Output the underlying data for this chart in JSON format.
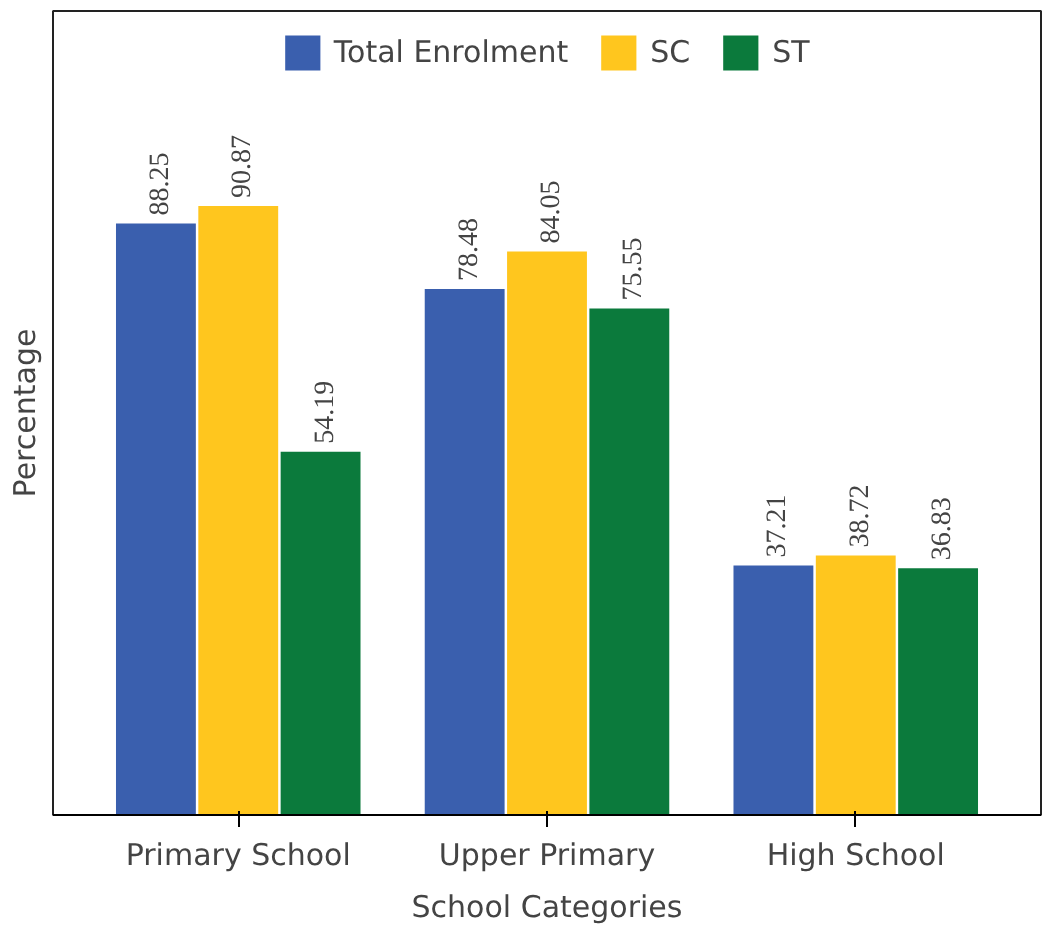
{
  "chart_data": {
    "type": "bar",
    "xlabel": "School Categories",
    "ylabel": "Percentage",
    "categories": [
      "Primary School",
      "Upper Primary",
      "High School"
    ],
    "series": [
      {
        "name": "Total Enrolment",
        "color": "#3a5fae",
        "values": [
          88.25,
          78.48,
          37.21
        ]
      },
      {
        "name": "SC",
        "color": "#ffc61e",
        "values": [
          90.87,
          84.05,
          38.72
        ]
      },
      {
        "name": "ST",
        "color": "#0b7a3c",
        "values": [
          54.19,
          75.55,
          36.83
        ]
      }
    ],
    "data_labels": true,
    "legend": "top",
    "grid": false
  }
}
